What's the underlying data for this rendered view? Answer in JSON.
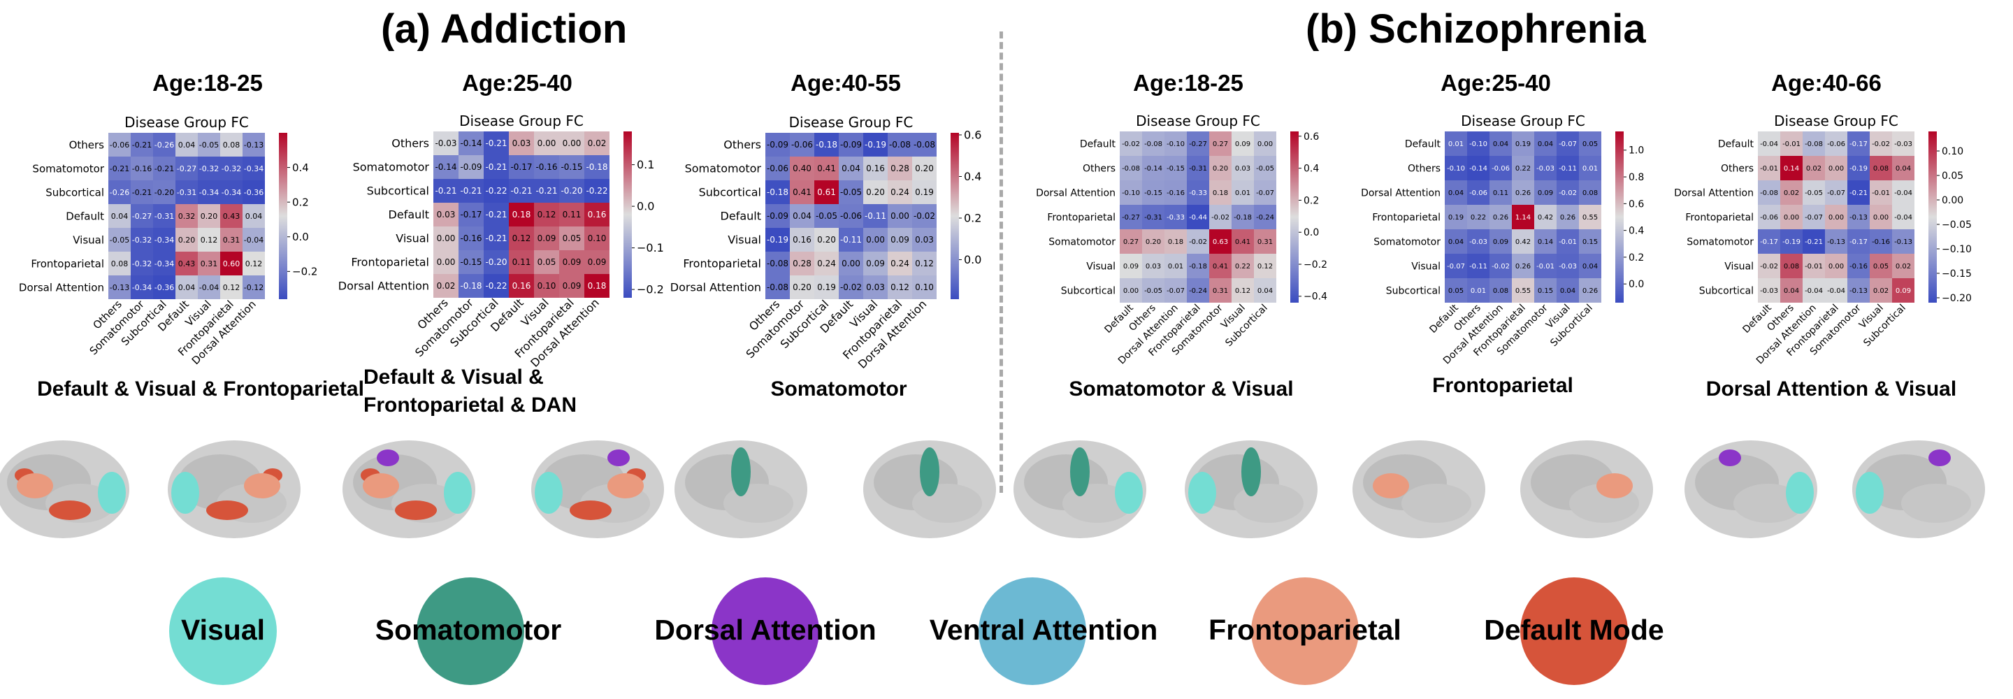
{
  "panels": [
    {
      "title": "(a) Addiction"
    },
    {
      "title": "(b) Schizophrenia"
    }
  ],
  "heatmap_title": "Disease Group FC",
  "colors": {
    "cold": "#3b4cc0",
    "mid": "#dddddd",
    "hot": "#b40426"
  },
  "chart_data": [
    {
      "type": "heatmap",
      "panel": "(a) Addiction",
      "title": "Disease Group FC",
      "age": "Age:18-25",
      "highlight": "Default & Visual & Frontoparietal",
      "labels": [
        "Others",
        "Somatomotor",
        "Subcortical",
        "Default",
        "Visual",
        "Frontoparietal",
        "Dorsal Attention"
      ],
      "values": [
        [
          -0.06,
          -0.21,
          -0.26,
          0.04,
          -0.05,
          0.08,
          -0.13
        ],
        [
          -0.21,
          -0.16,
          -0.21,
          -0.27,
          -0.32,
          -0.32,
          -0.34
        ],
        [
          -0.26,
          -0.21,
          -0.2,
          -0.31,
          -0.34,
          -0.34,
          -0.36
        ],
        [
          0.04,
          -0.27,
          -0.31,
          0.32,
          0.2,
          0.43,
          0.04
        ],
        [
          -0.05,
          -0.32,
          -0.34,
          0.2,
          0.12,
          0.31,
          -0.04
        ],
        [
          0.08,
          -0.32,
          -0.34,
          0.43,
          0.31,
          0.6,
          0.12
        ],
        [
          -0.13,
          -0.34,
          -0.36,
          0.04,
          -0.04,
          0.12,
          -0.12
        ]
      ],
      "vmin": -0.36,
      "vmax": 0.6,
      "ticks": [
        -0.2,
        0.0,
        0.2,
        0.4
      ],
      "tick_labels": [
        "−0.2",
        "0.0",
        "0.2",
        "0.4"
      ]
    },
    {
      "type": "heatmap",
      "panel": "(a) Addiction",
      "title": "Disease Group FC",
      "age": "Age:25-40",
      "highlight": "Default & Visual & Frontoparietal & DAN",
      "labels": [
        "Others",
        "Somatomotor",
        "Subcortical",
        "Default",
        "Visual",
        "Frontoparietal",
        "Dorsal Attention"
      ],
      "values": [
        [
          -0.03,
          -0.14,
          -0.21,
          0.03,
          0.0,
          -0.0,
          0.02
        ],
        [
          -0.14,
          -0.09,
          -0.21,
          -0.17,
          -0.16,
          -0.15,
          -0.18
        ],
        [
          -0.21,
          -0.21,
          -0.22,
          -0.21,
          -0.21,
          -0.2,
          -0.22
        ],
        [
          0.03,
          -0.17,
          -0.21,
          0.18,
          0.12,
          0.11,
          0.16
        ],
        [
          0.0,
          -0.16,
          -0.21,
          0.12,
          0.09,
          0.05,
          0.1
        ],
        [
          -0.0,
          -0.15,
          -0.2,
          0.11,
          0.05,
          0.09,
          0.09
        ],
        [
          0.02,
          -0.18,
          -0.22,
          0.16,
          0.1,
          0.09,
          0.18
        ]
      ],
      "vmin": -0.22,
      "vmax": 0.18,
      "ticks": [
        -0.2,
        -0.1,
        0.0,
        0.1
      ],
      "tick_labels": [
        "−0.2",
        "−0.1",
        "0.0",
        "0.1"
      ]
    },
    {
      "type": "heatmap",
      "panel": "(a) Addiction",
      "title": "Disease Group FC",
      "age": "Age:40-55",
      "highlight": "Somatomotor",
      "labels": [
        "Others",
        "Somatomotor",
        "Subcortical",
        "Default",
        "Visual",
        "Frontoparietal",
        "Dorsal Attention"
      ],
      "values": [
        [
          -0.09,
          -0.06,
          -0.18,
          -0.09,
          -0.19,
          -0.08,
          -0.08
        ],
        [
          -0.06,
          0.4,
          0.41,
          0.04,
          0.16,
          0.28,
          0.2
        ],
        [
          -0.18,
          0.41,
          0.61,
          -0.05,
          0.2,
          0.24,
          0.19
        ],
        [
          -0.09,
          0.04,
          -0.05,
          -0.06,
          -0.11,
          0.0,
          -0.02
        ],
        [
          -0.19,
          0.16,
          0.2,
          -0.11,
          0.0,
          0.09,
          0.03
        ],
        [
          -0.08,
          0.28,
          0.24,
          0.0,
          0.09,
          0.24,
          0.12
        ],
        [
          -0.08,
          0.2,
          0.19,
          -0.02,
          0.03,
          0.12,
          0.1
        ]
      ],
      "vmin": -0.19,
      "vmax": 0.61,
      "ticks": [
        0.0,
        0.2,
        0.4,
        0.6
      ],
      "tick_labels": [
        "0.0",
        "0.2",
        "0.4",
        "0.6"
      ]
    },
    {
      "type": "heatmap",
      "panel": "(b) Schizophrenia",
      "title": "Disease Group FC",
      "age": "Age:18-25",
      "highlight": "Somatomotor & Visual",
      "labels": [
        "Default",
        "Others",
        "Dorsal Attention",
        "Frontoparietal",
        "Somatomotor",
        "Visual",
        "Subcortical"
      ],
      "values": [
        [
          -0.02,
          -0.08,
          -0.1,
          -0.27,
          0.27,
          0.09,
          0.0
        ],
        [
          -0.08,
          -0.14,
          -0.15,
          -0.31,
          0.2,
          0.03,
          -0.05
        ],
        [
          -0.1,
          -0.15,
          -0.16,
          -0.33,
          0.18,
          0.01,
          -0.07
        ],
        [
          -0.27,
          -0.31,
          -0.33,
          -0.44,
          -0.02,
          -0.18,
          -0.24
        ],
        [
          0.27,
          0.2,
          0.18,
          -0.02,
          0.63,
          0.41,
          0.31
        ],
        [
          0.09,
          0.03,
          0.01,
          -0.18,
          0.41,
          0.22,
          0.12
        ],
        [
          0.0,
          -0.05,
          -0.07,
          -0.24,
          0.31,
          0.12,
          0.04
        ]
      ],
      "vmin": -0.44,
      "vmax": 0.63,
      "ticks": [
        -0.4,
        -0.2,
        0.0,
        0.2,
        0.4,
        0.6
      ],
      "tick_labels": [
        "−0.4",
        "−0.2",
        "0.0",
        "0.2",
        "0.4",
        "0.6"
      ]
    },
    {
      "type": "heatmap",
      "panel": "(b) Schizophrenia",
      "title": "Disease Group FC",
      "age": "Age:25-40",
      "highlight": "Frontoparietal",
      "labels": [
        "Default",
        "Others",
        "Dorsal Attention",
        "Frontoparietal",
        "Somatomotor",
        "Visual",
        "Subcortical"
      ],
      "values": [
        [
          0.01,
          -0.1,
          0.04,
          0.19,
          0.04,
          -0.07,
          0.05
        ],
        [
          -0.1,
          -0.14,
          -0.06,
          0.22,
          -0.03,
          -0.11,
          0.01
        ],
        [
          0.04,
          -0.06,
          0.11,
          0.26,
          0.09,
          -0.02,
          0.08
        ],
        [
          0.19,
          0.22,
          0.26,
          1.14,
          0.42,
          0.26,
          0.55
        ],
        [
          0.04,
          -0.03,
          0.09,
          0.42,
          0.14,
          -0.01,
          0.15
        ],
        [
          -0.07,
          -0.11,
          -0.02,
          0.26,
          -0.01,
          -0.03,
          0.04
        ],
        [
          0.05,
          0.01,
          0.08,
          0.55,
          0.15,
          0.04,
          0.26
        ]
      ],
      "vmin": -0.14,
      "vmax": 1.14,
      "ticks": [
        0.0,
        0.2,
        0.4,
        0.6,
        0.8,
        1.0
      ],
      "tick_labels": [
        "0.0",
        "0.2",
        "0.4",
        "0.6",
        "0.8",
        "1.0"
      ]
    },
    {
      "type": "heatmap",
      "panel": "(b) Schizophrenia",
      "title": "Disease Group FC",
      "age": "Age:40-66",
      "highlight": "Dorsal Attention & Visual",
      "labels": [
        "Default",
        "Others",
        "Dorsal Attention",
        "Frontoparietal",
        "Somatomotor",
        "Visual",
        "Subcortical"
      ],
      "values": [
        [
          -0.04,
          -0.01,
          -0.08,
          -0.06,
          -0.17,
          -0.02,
          -0.03
        ],
        [
          -0.01,
          0.14,
          0.02,
          -0.0,
          -0.19,
          0.08,
          0.04
        ],
        [
          -0.08,
          0.02,
          -0.05,
          -0.07,
          -0.21,
          -0.01,
          -0.04
        ],
        [
          -0.06,
          -0.0,
          -0.07,
          0.0,
          -0.13,
          -0.0,
          -0.04
        ],
        [
          -0.17,
          -0.19,
          -0.21,
          -0.13,
          -0.17,
          -0.16,
          -0.13
        ],
        [
          -0.02,
          0.08,
          -0.01,
          -0.0,
          -0.16,
          0.05,
          0.02
        ],
        [
          -0.03,
          0.04,
          -0.04,
          -0.04,
          -0.13,
          0.02,
          0.09
        ]
      ],
      "vmin": -0.21,
      "vmax": 0.14,
      "ticks": [
        -0.2,
        -0.15,
        -0.1,
        -0.05,
        0.0,
        0.05,
        0.1
      ],
      "tick_labels": [
        "−0.20",
        "−0.15",
        "−0.10",
        "−0.05",
        "0.00",
        "0.05",
        "0.10"
      ]
    }
  ],
  "legend": [
    {
      "label": "Visual",
      "color": "#74ddd3"
    },
    {
      "label": "Somatomotor",
      "color": "#3e9a84"
    },
    {
      "label": "Dorsal Attention",
      "color": "#8b35c8"
    },
    {
      "label": "Ventral Attention",
      "color": "#6cb9d3"
    },
    {
      "label": "Frontoparietal",
      "color": "#ea9a7e"
    },
    {
      "label": "Default Mode",
      "color": "#d6543a"
    }
  ],
  "brain_overlays": [
    [
      "Visual",
      "Default Mode",
      "Frontoparietal"
    ],
    [
      "Visual",
      "Default Mode",
      "Frontoparietal",
      "Dorsal Attention"
    ],
    [
      "Somatomotor"
    ],
    [
      "Somatomotor",
      "Visual"
    ],
    [
      "Frontoparietal"
    ],
    [
      "Dorsal Attention",
      "Visual"
    ]
  ]
}
